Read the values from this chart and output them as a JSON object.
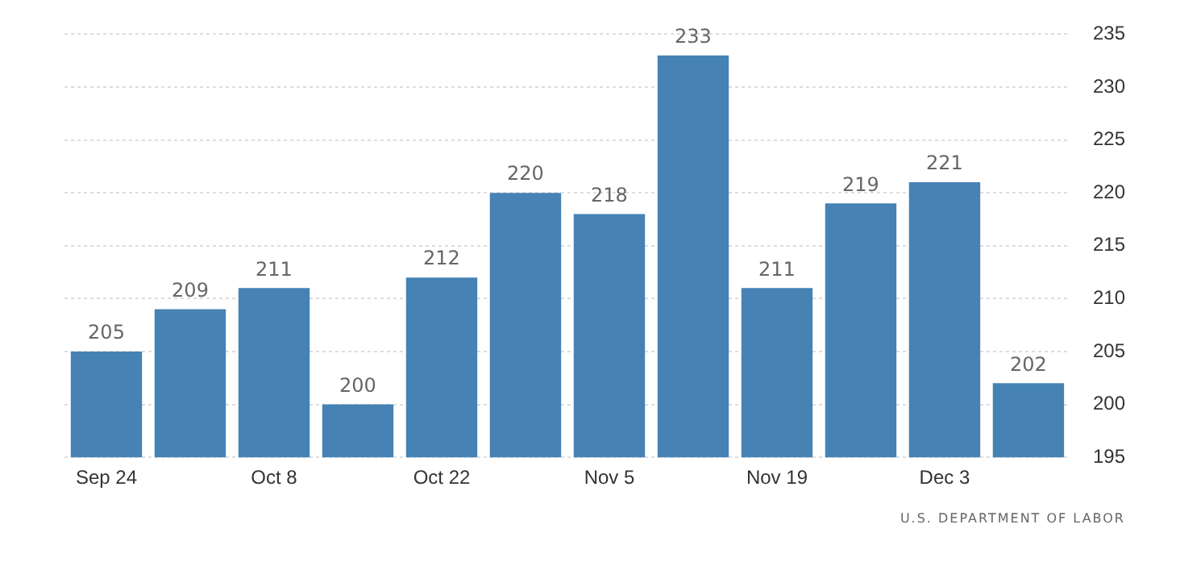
{
  "chart_data": {
    "type": "bar",
    "categories": [
      "Sep 24",
      null,
      "Oct 8",
      null,
      "Oct 22",
      null,
      "Nov 5",
      null,
      "Nov 19",
      null,
      "Dec 3",
      null
    ],
    "values": [
      205,
      209,
      211,
      200,
      212,
      220,
      218,
      233,
      211,
      219,
      221,
      202
    ],
    "color": "#4682b4",
    "ylim": [
      195,
      235
    ],
    "yticks": [
      195,
      200,
      205,
      210,
      215,
      220,
      225,
      230,
      235
    ],
    "grid": "y",
    "data_labels": true,
    "legend": false,
    "annotations": [
      "U.S. DEPARTMENT OF LABOR"
    ]
  }
}
